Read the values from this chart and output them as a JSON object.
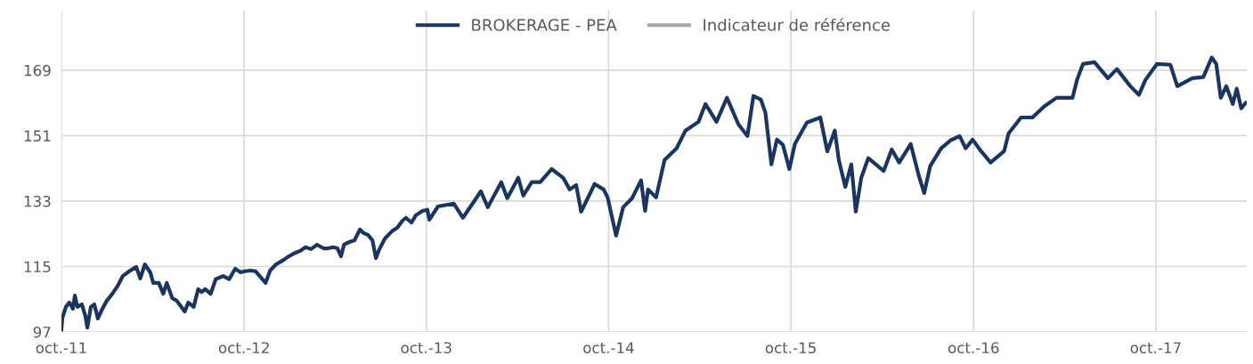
{
  "chart_data": {
    "type": "line",
    "x": [
      "2011-10-01",
      "2011-10-03",
      "2011-10-10",
      "2011-10-17",
      "2011-10-24",
      "2011-10-28",
      "2011-11-02",
      "2011-11-11",
      "2011-11-18",
      "2011-11-22",
      "2011-11-29",
      "2011-12-06",
      "2011-12-13",
      "2011-12-21",
      "2011-12-31",
      "2012-01-11",
      "2012-01-21",
      "2012-02-01",
      "2012-02-14",
      "2012-02-28",
      "2012-03-07",
      "2012-03-16",
      "2012-03-27",
      "2012-04-02",
      "2012-04-13",
      "2012-04-22",
      "2012-04-29",
      "2012-05-10",
      "2012-05-19",
      "2012-05-28",
      "2012-06-04",
      "2012-06-11",
      "2012-06-22",
      "2012-07-01",
      "2012-07-08",
      "2012-07-15",
      "2012-07-26",
      "2012-08-05",
      "2012-08-20",
      "2012-09-01",
      "2012-09-13",
      "2012-09-24",
      "2012-10-03",
      "2012-10-14",
      "2012-10-24",
      "2012-11-01",
      "2012-11-13",
      "2012-11-22",
      "2012-12-04",
      "2012-12-19",
      "2012-12-27",
      "2013-01-09",
      "2013-01-21",
      "2013-02-01",
      "2013-02-12",
      "2013-02-24",
      "2013-03-09",
      "2013-03-18",
      "2013-03-28",
      "2013-04-06",
      "2013-04-13",
      "2013-04-19",
      "2013-04-29",
      "2013-05-10",
      "2013-05-21",
      "2013-05-28",
      "2013-06-06",
      "2013-06-15",
      "2013-06-22",
      "2013-06-29",
      "2013-07-10",
      "2013-07-24",
      "2013-08-04",
      "2013-08-14",
      "2013-08-21",
      "2013-09-01",
      "2013-09-10",
      "2013-09-23",
      "2013-10-03",
      "2013-10-07",
      "2013-10-24",
      "2013-11-25",
      "2013-12-13",
      "2014-01-04",
      "2014-01-18",
      "2014-02-01",
      "2014-02-28",
      "2014-03-12",
      "2014-04-03",
      "2014-04-13",
      "2014-04-30",
      "2014-05-17",
      "2014-06-09",
      "2014-07-02",
      "2014-07-15",
      "2014-07-28",
      "2014-08-07",
      "2014-09-03",
      "2014-09-21",
      "2014-09-29",
      "2014-10-16",
      "2014-10-30",
      "2014-11-17",
      "2014-12-05",
      "2014-12-13",
      "2014-12-19",
      "2015-01-04",
      "2015-01-21",
      "2015-02-14",
      "2015-03-04",
      "2015-03-30",
      "2015-04-13",
      "2015-05-05",
      "2015-05-26",
      "2015-06-18",
      "2015-07-06",
      "2015-07-18",
      "2015-08-02",
      "2015-08-11",
      "2015-08-23",
      "2015-09-03",
      "2015-09-15",
      "2015-09-28",
      "2015-10-09",
      "2015-11-02",
      "2015-11-29",
      "2015-12-13",
      "2015-12-28",
      "2016-01-05",
      "2016-01-18",
      "2016-01-30",
      "2016-02-08",
      "2016-02-19",
      "2016-03-04",
      "2016-04-04",
      "2016-04-20",
      "2016-05-05",
      "2016-05-28",
      "2016-06-13",
      "2016-06-24",
      "2016-07-06",
      "2016-07-28",
      "2016-08-16",
      "2016-09-03",
      "2016-09-15",
      "2016-09-29",
      "2016-10-16",
      "2016-11-04",
      "2016-12-01",
      "2016-12-10",
      "2017-01-04",
      "2017-01-27",
      "2017-02-19",
      "2017-03-16",
      "2017-04-17",
      "2017-04-26",
      "2017-05-08",
      "2017-05-31",
      "2017-06-27",
      "2017-07-15",
      "2017-08-11",
      "2017-08-28",
      "2017-09-10",
      "2017-10-03",
      "2017-10-30",
      "2017-11-13",
      "2017-12-13",
      "2018-01-04",
      "2018-01-21",
      "2018-01-30",
      "2018-02-08",
      "2018-02-19",
      "2018-03-04",
      "2018-03-12",
      "2018-03-21",
      "2018-03-30"
    ],
    "series": [
      {
        "name": "BROKERAGE - PEA",
        "color": "#1a3560",
        "values": [
          97.7,
          100.9,
          103.9,
          105.1,
          103.4,
          107.0,
          103.9,
          104.6,
          101.4,
          98.2,
          103.9,
          104.6,
          100.7,
          103.1,
          105.6,
          107.5,
          109.5,
          112.4,
          113.7,
          114.9,
          111.7,
          115.6,
          113.4,
          110.5,
          110.5,
          107.5,
          110.5,
          106.3,
          105.6,
          103.9,
          102.6,
          105.1,
          103.9,
          108.8,
          108.0,
          108.8,
          107.5,
          111.5,
          112.4,
          111.5,
          114.4,
          113.4,
          113.7,
          113.9,
          113.7,
          112.4,
          110.5,
          113.9,
          115.6,
          116.8,
          117.6,
          118.6,
          119.3,
          120.3,
          119.8,
          121.0,
          120.0,
          120.0,
          120.3,
          120.0,
          117.8,
          121.0,
          121.7,
          122.2,
          125.2,
          124.2,
          123.7,
          122.2,
          117.3,
          119.8,
          122.7,
          124.7,
          125.7,
          127.6,
          128.4,
          127.1,
          129.1,
          130.3,
          130.6,
          127.9,
          131.5,
          132.3,
          128.4,
          132.8,
          135.7,
          131.3,
          138.2,
          133.8,
          139.4,
          134.5,
          138.2,
          138.2,
          141.8,
          139.4,
          136.2,
          137.4,
          130.1,
          137.7,
          136.2,
          134.0,
          123.5,
          131.3,
          133.8,
          138.7,
          130.3,
          136.2,
          134.0,
          144.3,
          147.5,
          152.4,
          154.8,
          159.7,
          154.8,
          161.4,
          154.1,
          150.9,
          161.9,
          160.9,
          157.3,
          143.1,
          149.9,
          148.5,
          141.8,
          148.7,
          154.6,
          156.0,
          146.7,
          152.4,
          144.3,
          136.9,
          143.1,
          130.1,
          139.4,
          144.8,
          141.3,
          147.2,
          143.6,
          148.7,
          140.1,
          135.2,
          142.6,
          147.5,
          149.7,
          150.9,
          147.5,
          149.9,
          146.7,
          143.6,
          146.7,
          151.6,
          156.0,
          156.0,
          159.0,
          161.4,
          161.4,
          166.3,
          170.7,
          171.2,
          166.8,
          169.3,
          164.6,
          162.2,
          166.3,
          170.7,
          170.5,
          164.6,
          166.8,
          167.1,
          172.5,
          170.7,
          161.4,
          164.6,
          159.7,
          163.9,
          158.5,
          160.0
        ]
      },
      {
        "name": "Indicateur de référence",
        "color": "#a6a6a6",
        "values": [
          null,
          null,
          null,
          null,
          null,
          null,
          null,
          null,
          null,
          null,
          null,
          null,
          null,
          null,
          null,
          null,
          null,
          null,
          null,
          null,
          null,
          null,
          null,
          null,
          null,
          null,
          null,
          null,
          null,
          null,
          null,
          null,
          null,
          null,
          null,
          null,
          null,
          null,
          null,
          null,
          null,
          null,
          null,
          null,
          null,
          null,
          null,
          null,
          null,
          null,
          null,
          null,
          null,
          null,
          null,
          null,
          null,
          null,
          null,
          null,
          null,
          null,
          null,
          null,
          null,
          null,
          null,
          null,
          null,
          null,
          null,
          null,
          null,
          null,
          null,
          null,
          null,
          null,
          null,
          null,
          null,
          null,
          null,
          null,
          null,
          null,
          null,
          null,
          null,
          null,
          null,
          null,
          null,
          null,
          null,
          null,
          null,
          null,
          null,
          null,
          null,
          null,
          null,
          null,
          null,
          null,
          null,
          null,
          null,
          null,
          null,
          null,
          null,
          null,
          null,
          null,
          null,
          null,
          null,
          null,
          null,
          null,
          null,
          null,
          null,
          null,
          null,
          null,
          null,
          null,
          null,
          null,
          null,
          null,
          null,
          null,
          null,
          null,
          null,
          null,
          null,
          null,
          null,
          null,
          null,
          null,
          null,
          null,
          null,
          null,
          null,
          null,
          null,
          null,
          null,
          null,
          null,
          null,
          null,
          null,
          null,
          null,
          null,
          null,
          null,
          null,
          null,
          null,
          null,
          null,
          null,
          null,
          null,
          null,
          null,
          null
        ]
      }
    ],
    "xlim": [
      "2011-10-01",
      "2018-04-01"
    ],
    "xticks": [
      {
        "value": "2011-10-01",
        "label": "oct.-11"
      },
      {
        "value": "2012-10-01",
        "label": "oct.-12"
      },
      {
        "value": "2013-10-01",
        "label": "oct.-13"
      },
      {
        "value": "2014-10-01",
        "label": "oct.-14"
      },
      {
        "value": "2015-10-01",
        "label": "oct.-15"
      },
      {
        "value": "2016-10-01",
        "label": "oct.-16"
      },
      {
        "value": "2017-10-01",
        "label": "oct.-17"
      }
    ],
    "ylim": [
      97,
      185.4
    ],
    "yticks": [
      97,
      115,
      133,
      151,
      169
    ],
    "grid": true,
    "legend": "top",
    "marker": "none",
    "line_style": "solid"
  }
}
